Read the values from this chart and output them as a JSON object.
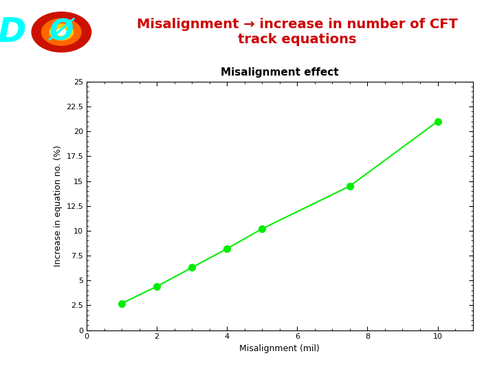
{
  "title_main": "Misalignment → increase in number of CFT\ntrack equations",
  "title_main_color": "#cc0000",
  "title_main_fontsize": 14,
  "red_line_color": "#cc0000",
  "chart_title": "Misalignment effect",
  "chart_title_fontsize": 11,
  "xlabel": "Misalignment (mil)",
  "ylabel": "Increase in equation no. (%)",
  "x_data": [
    1,
    2,
    3,
    4,
    5,
    7.5,
    10
  ],
  "y_data": [
    2.7,
    4.4,
    6.3,
    8.2,
    10.2,
    14.5,
    21.0
  ],
  "xlim": [
    0,
    11
  ],
  "ylim": [
    0,
    25
  ],
  "xticks": [
    0,
    2,
    4,
    6,
    8,
    10
  ],
  "yticks": [
    0,
    2.5,
    5,
    7.5,
    10,
    12.5,
    15,
    17.5,
    20,
    22.5,
    25
  ],
  "line_color": "#00ee00",
  "marker_color": "#00ee00",
  "marker_size": 7,
  "background_color": "#ffffff",
  "axis_label_fontsize": 9,
  "tick_label_fontsize": 8
}
